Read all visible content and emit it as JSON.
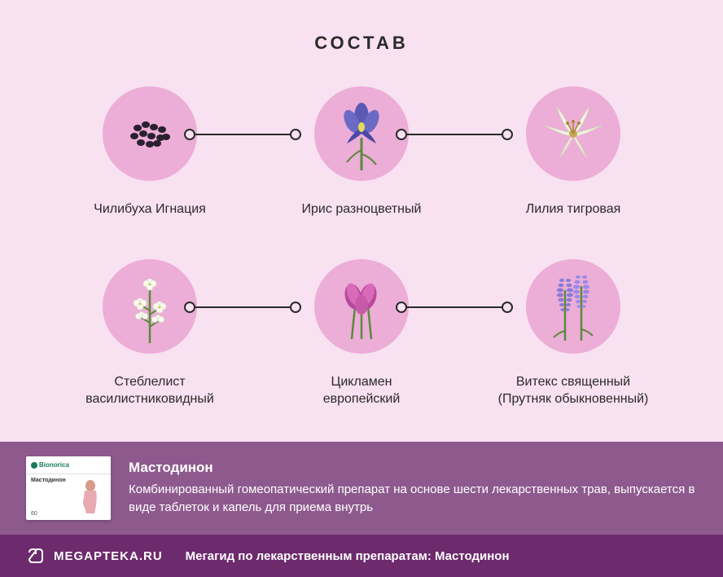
{
  "title": "СОСТАВ",
  "colors": {
    "background": "#f8e1f0",
    "circle": "#ecadd7",
    "text": "#2a2a2a",
    "product_bar": "#8e5a8e",
    "footer": "#6d2a6d",
    "white": "#ffffff"
  },
  "row1": [
    {
      "label": "Чилибуха Игнация",
      "icon": "seeds"
    },
    {
      "label": "Ирис разноцветный",
      "icon": "iris"
    },
    {
      "label": "Лилия тигровая",
      "icon": "lily"
    }
  ],
  "row2": [
    {
      "label": "Стеблелист\nвасилистниковидный",
      "icon": "white-flowers"
    },
    {
      "label": "Цикламен\nевропейский",
      "icon": "cyclamen"
    },
    {
      "label": "Витекс священный\n(Прутняк обыкновенный)",
      "icon": "vitex"
    }
  ],
  "product": {
    "brand": "Bionorica",
    "box_name": "Мастодинон",
    "box_count": "60",
    "title": "Мастодинон",
    "description": "Комбинированный гомеопатический препарат на основе шести лекарственных трав, выпускается в виде таблеток и капель для приема внутрь"
  },
  "footer": {
    "site": "MEGAPTEKA.RU",
    "tagline": "Мегагид по лекарственным препаратам: Мастодинон"
  }
}
